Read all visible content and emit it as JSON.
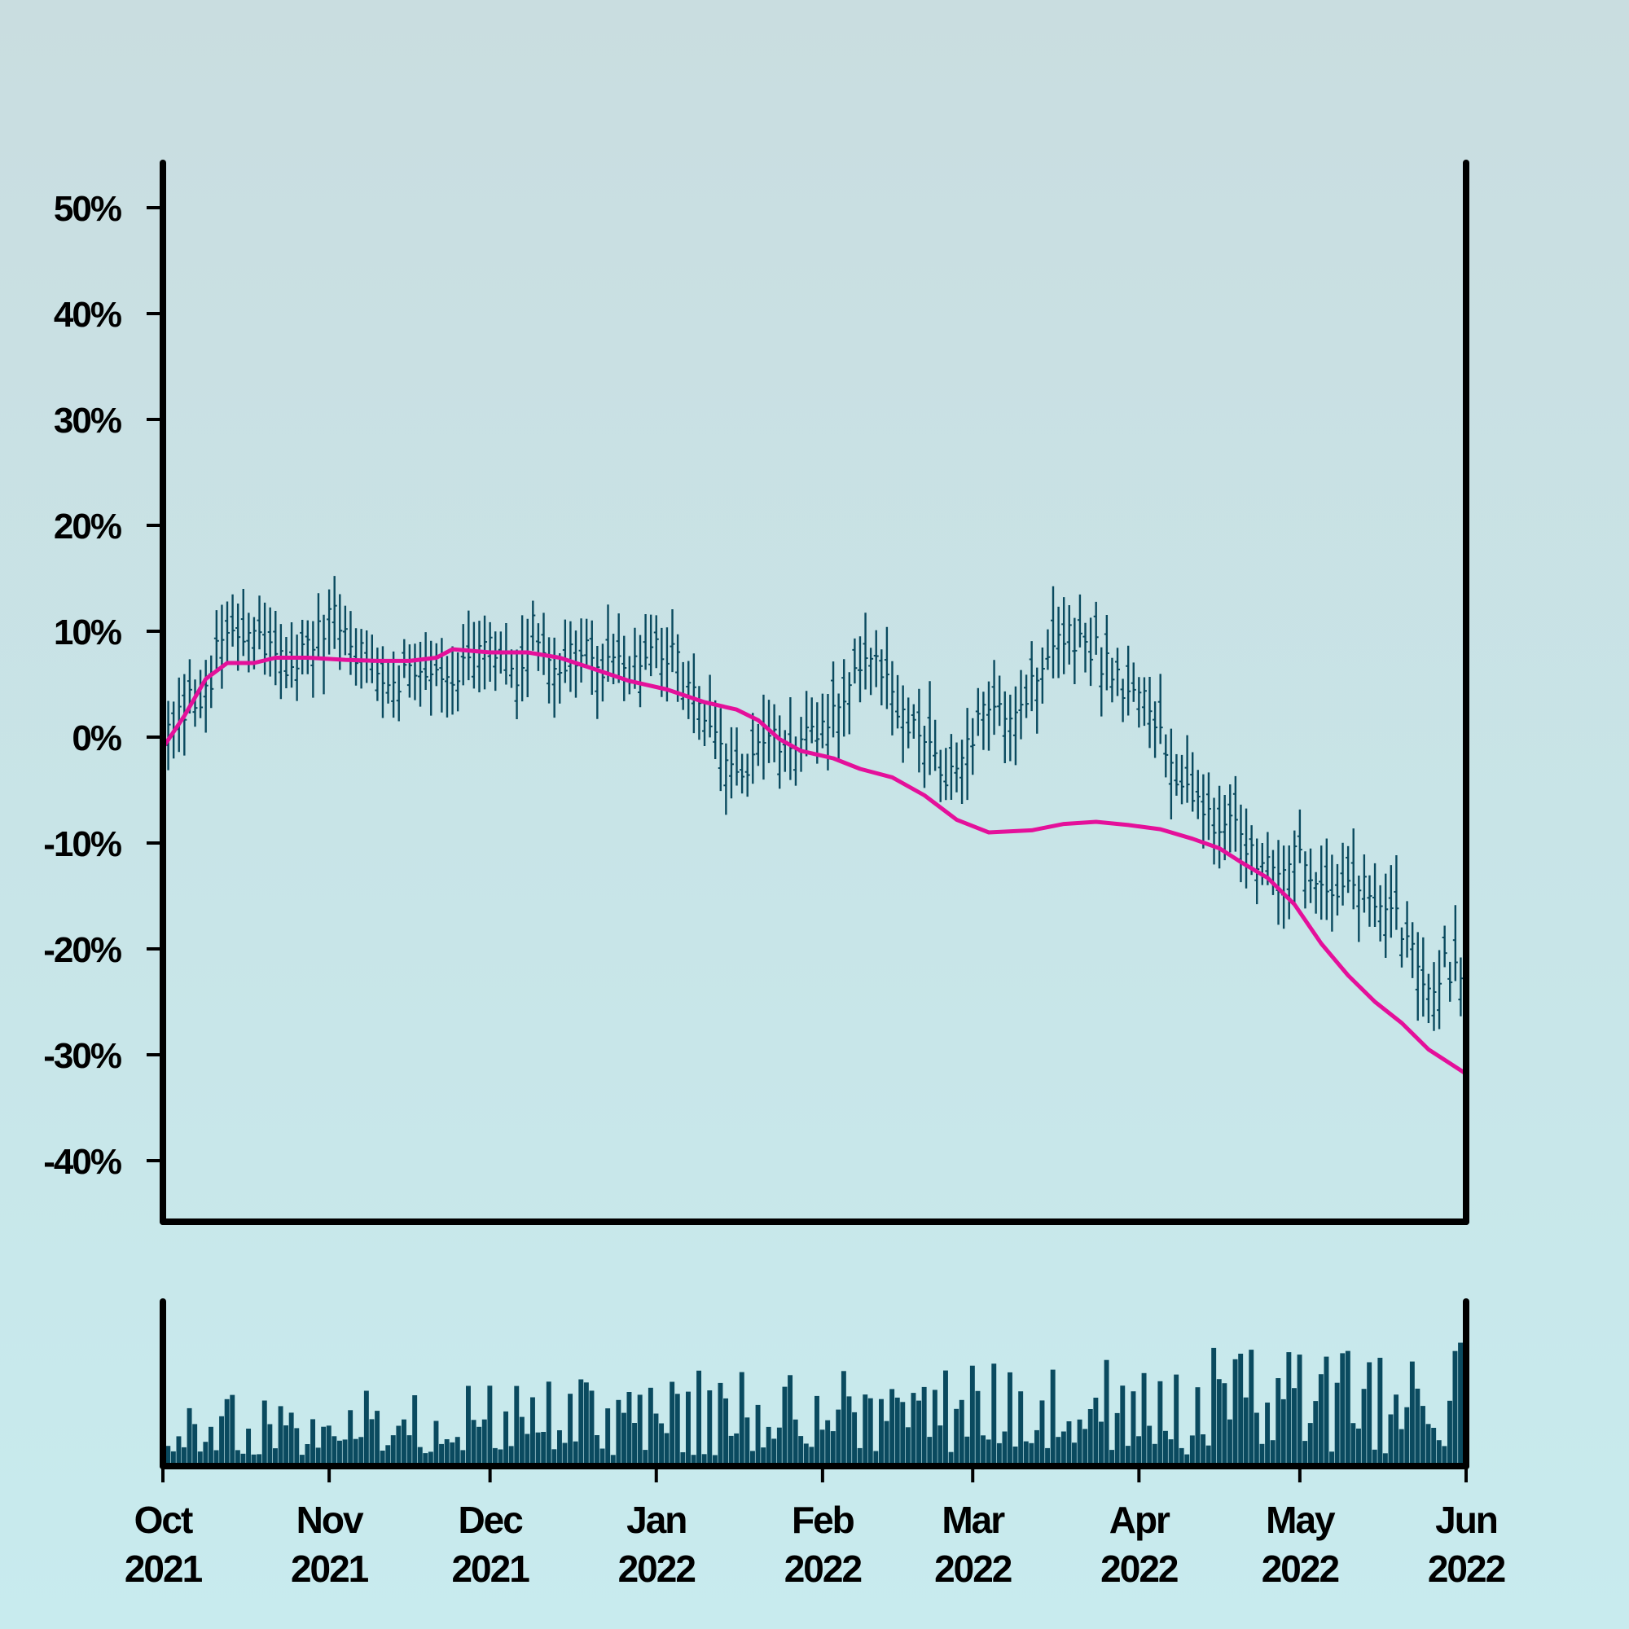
{
  "chart_data": [
    {
      "type": "ohlc",
      "panel": "price",
      "title": "",
      "xlabel": "",
      "ylabel": "",
      "ylim": [
        -46,
        54
      ],
      "grid": false,
      "yticks": [
        50,
        40,
        30,
        20,
        10,
        0,
        -10,
        -20,
        -30,
        -40
      ],
      "ytick_labels": [
        "50%",
        "40%",
        "30%",
        "20%",
        "10%",
        "0%",
        "-10%",
        "-20%",
        "-30%",
        "-40%"
      ],
      "x_range": [
        "2021-10-01",
        "2022-06-01"
      ],
      "bar_color": "#0a4a5f",
      "close_anchors": [
        [
          "2021-10-01",
          -1
        ],
        [
          "2021-10-05",
          2
        ],
        [
          "2021-10-09",
          5
        ],
        [
          "2021-10-13",
          10
        ],
        [
          "2021-10-18",
          9
        ],
        [
          "2021-10-23",
          7
        ],
        [
          "2021-10-28",
          8
        ],
        [
          "2021-11-02",
          11
        ],
        [
          "2021-11-08",
          7
        ],
        [
          "2021-11-14",
          6
        ],
        [
          "2021-11-19",
          7
        ],
        [
          "2021-11-25",
          6
        ],
        [
          "2021-12-01",
          8
        ],
        [
          "2021-12-06",
          6
        ],
        [
          "2021-12-09",
          10
        ],
        [
          "2021-12-13",
          7
        ],
        [
          "2021-12-18",
          8
        ],
        [
          "2021-12-23",
          6
        ],
        [
          "2021-12-28",
          7
        ],
        [
          "2022-01-03",
          8
        ],
        [
          "2022-01-08",
          4
        ],
        [
          "2022-01-12",
          -1
        ],
        [
          "2022-01-15",
          -3
        ],
        [
          "2022-01-17",
          -4
        ],
        [
          "2022-01-20",
          -2
        ],
        [
          "2022-01-23",
          1
        ],
        [
          "2022-01-27",
          -2
        ],
        [
          "2022-02-01",
          1
        ],
        [
          "2022-02-04",
          3
        ],
        [
          "2022-02-08",
          7
        ],
        [
          "2022-02-12",
          6
        ],
        [
          "2022-02-15",
          2
        ],
        [
          "2022-02-20",
          -1
        ],
        [
          "2022-02-26",
          -4
        ],
        [
          "2022-03-01",
          0
        ],
        [
          "2022-03-05",
          3
        ],
        [
          "2022-03-10",
          3
        ],
        [
          "2022-03-16",
          9
        ],
        [
          "2022-03-22",
          9
        ],
        [
          "2022-03-28",
          6
        ],
        [
          "2022-04-02",
          3
        ],
        [
          "2022-04-07",
          -2
        ],
        [
          "2022-04-12",
          -6
        ],
        [
          "2022-04-16",
          -8
        ],
        [
          "2022-04-20",
          -10
        ],
        [
          "2022-04-24",
          -11
        ],
        [
          "2022-04-28",
          -12
        ],
        [
          "2022-05-02",
          -12
        ],
        [
          "2022-05-07",
          -14
        ],
        [
          "2022-05-12",
          -14
        ],
        [
          "2022-05-16",
          -16
        ],
        [
          "2022-05-20",
          -18
        ],
        [
          "2022-05-23",
          -21
        ],
        [
          "2022-05-26",
          -23
        ],
        [
          "2022-05-28",
          -22
        ],
        [
          "2022-05-30",
          -21
        ],
        [
          "2022-06-01",
          -22
        ]
      ],
      "series": [
        {
          "name": "",
          "type": "line",
          "color": "#e4109a",
          "points": [
            [
              "2021-10-01",
              -1
            ],
            [
              "2021-10-05",
              2
            ],
            [
              "2021-10-09",
              5.5
            ],
            [
              "2021-10-13",
              7
            ],
            [
              "2021-10-18",
              7
            ],
            [
              "2021-10-22",
              7.5
            ],
            [
              "2021-10-28",
              7.5
            ],
            [
              "2021-11-04",
              7.3
            ],
            [
              "2021-11-10",
              7.2
            ],
            [
              "2021-11-16",
              7.2
            ],
            [
              "2021-11-21",
              7.5
            ],
            [
              "2021-11-24",
              8.3
            ],
            [
              "2021-12-01",
              8
            ],
            [
              "2021-12-08",
              8
            ],
            [
              "2021-12-14",
              7.5
            ],
            [
              "2021-12-20",
              6.5
            ],
            [
              "2021-12-27",
              5.3
            ],
            [
              "2022-01-03",
              4.5
            ],
            [
              "2022-01-10",
              3.3
            ],
            [
              "2022-01-16",
              2.6
            ],
            [
              "2022-01-20",
              1.6
            ],
            [
              "2022-01-24",
              -0.2
            ],
            [
              "2022-01-28",
              -1.3
            ],
            [
              "2022-02-03",
              -2
            ],
            [
              "2022-02-08",
              -3
            ],
            [
              "2022-02-14",
              -3.8
            ],
            [
              "2022-02-20",
              -5.5
            ],
            [
              "2022-02-26",
              -7.8
            ],
            [
              "2022-03-04",
              -9
            ],
            [
              "2022-03-12",
              -8.8
            ],
            [
              "2022-03-18",
              -8.2
            ],
            [
              "2022-03-24",
              -8
            ],
            [
              "2022-03-30",
              -8.3
            ],
            [
              "2022-04-05",
              -8.7
            ],
            [
              "2022-04-11",
              -9.6
            ],
            [
              "2022-04-16",
              -10.5
            ],
            [
              "2022-04-20",
              -11.8
            ],
            [
              "2022-04-25",
              -13.3
            ],
            [
              "2022-04-30",
              -15.8
            ],
            [
              "2022-05-05",
              -19.5
            ],
            [
              "2022-05-10",
              -22.5
            ],
            [
              "2022-05-15",
              -25
            ],
            [
              "2022-05-20",
              -27
            ],
            [
              "2022-05-25",
              -29.5
            ],
            [
              "2022-06-01",
              -31.8
            ]
          ]
        }
      ]
    },
    {
      "type": "bar",
      "panel": "volume",
      "title": "",
      "xlabel": "",
      "ylabel": "",
      "grid": false,
      "bar_color": "#0a4a5f",
      "x_range": [
        "2021-10-01",
        "2022-06-01"
      ],
      "level_anchors": [
        [
          "2021-10-01",
          0.35
        ],
        [
          "2021-11-01",
          0.35
        ],
        [
          "2021-12-01",
          0.4
        ],
        [
          "2022-01-01",
          0.45
        ],
        [
          "2022-02-01",
          0.5
        ],
        [
          "2022-03-01",
          0.5
        ],
        [
          "2022-04-01",
          0.55
        ],
        [
          "2022-05-01",
          0.6
        ],
        [
          "2022-06-01",
          0.6
        ]
      ],
      "xticks": [
        "2021-10-01",
        "2021-11-01",
        "2021-12-01",
        "2022-01-01",
        "2022-02-01",
        "2022-03-01",
        "2022-04-01",
        "2022-05-01",
        "2022-06-01"
      ],
      "xtick_labels": [
        [
          "Oct",
          "2021"
        ],
        [
          "Nov",
          "2021"
        ],
        [
          "Dec",
          "2021"
        ],
        [
          "Jan",
          "2022"
        ],
        [
          "Feb",
          "2022"
        ],
        [
          "Mar",
          "2022"
        ],
        [
          "Apr",
          "2022"
        ],
        [
          "May",
          "2022"
        ],
        [
          "Jun",
          "2022"
        ]
      ]
    }
  ]
}
